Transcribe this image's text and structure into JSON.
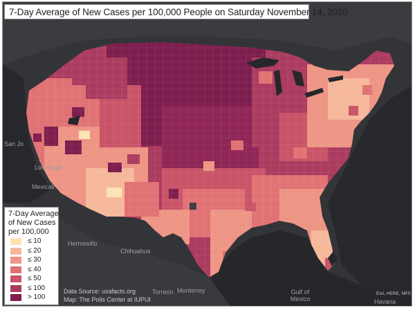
{
  "title": "7-Day Average of New Cases per 100,000 People on Saturday November 14, 2020",
  "legend": {
    "title_lines": [
      "7-Day Average",
      "of New Cases",
      "per 100,000"
    ],
    "items": [
      {
        "label": "≤ 10",
        "color": "#fbe3b4"
      },
      {
        "label": "≤ 20",
        "color": "#f6b89b"
      },
      {
        "label": "≤ 30",
        "color": "#ee9585"
      },
      {
        "label": "≤ 40",
        "color": "#e07274"
      },
      {
        "label": "≤ 50",
        "color": "#c95468"
      },
      {
        "label": "≤ 100",
        "color": "#ab3c60"
      },
      {
        "label": "> 100",
        "color": "#7e1e4e"
      }
    ]
  },
  "places": {
    "mexicali": "Mexicali",
    "hermosillo": "Hermosillo",
    "chihuahua": "Chihuahua",
    "torreon": "Torreón",
    "monterrey": "Monterrey",
    "gulf_of_mexico": "Gulf of Mexico",
    "havana": "Havana",
    "los_angeles_fragment": "Los Angel",
    "san_jose_fragment": "San Jo"
  },
  "credits": {
    "source": "Data Source: usafacts.org",
    "map": "Map: The Polis Center at IUPUI",
    "attribution": "Esri, HERE, NPS"
  },
  "colors": {
    "background_dark": "#2f3033",
    "land_dark": "#3c3d41",
    "water": "#232427"
  }
}
